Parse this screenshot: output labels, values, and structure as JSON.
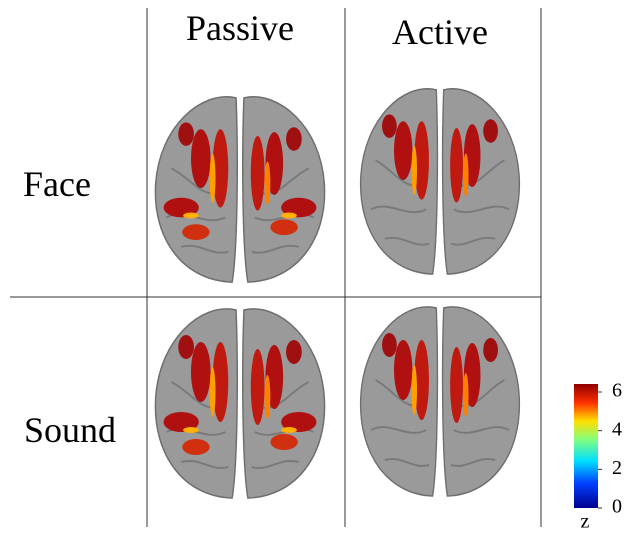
{
  "columns": [
    "Passive",
    "Active"
  ],
  "rows": [
    "Face",
    "Sound"
  ],
  "colorbar": {
    "label": "z",
    "ticks": [
      0,
      2,
      4,
      6
    ]
  }
}
